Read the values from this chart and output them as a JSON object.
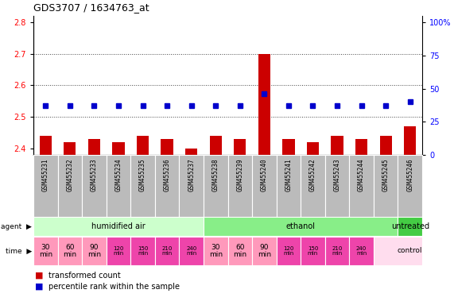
{
  "title": "GDS3707 / 1634763_at",
  "samples": [
    "GSM455231",
    "GSM455232",
    "GSM455233",
    "GSM455234",
    "GSM455235",
    "GSM455236",
    "GSM455237",
    "GSM455238",
    "GSM455239",
    "GSM455240",
    "GSM455241",
    "GSM455242",
    "GSM455243",
    "GSM455244",
    "GSM455245",
    "GSM455246"
  ],
  "transformed_count": [
    2.44,
    2.42,
    2.43,
    2.42,
    2.44,
    2.43,
    2.4,
    2.44,
    2.43,
    2.7,
    2.43,
    2.42,
    2.44,
    2.43,
    2.44,
    2.47
  ],
  "percentile_rank": [
    37,
    37,
    37,
    37,
    37,
    37,
    37,
    37,
    37,
    46,
    37,
    37,
    37,
    37,
    37,
    40
  ],
  "ylim_left": [
    2.38,
    2.82
  ],
  "ylim_right": [
    0,
    105
  ],
  "yticks_left": [
    2.4,
    2.5,
    2.6,
    2.7,
    2.8
  ],
  "yticks_right": [
    0,
    25,
    50,
    75,
    100
  ],
  "ytick_labels_right": [
    "0",
    "25",
    "50",
    "75",
    "100%"
  ],
  "bar_color": "#cc0000",
  "dot_color": "#0000cc",
  "bar_bottom": 2.38,
  "agent_groups": [
    {
      "label": "humidified air",
      "start": 0,
      "end": 7,
      "color": "#ccffcc"
    },
    {
      "label": "ethanol",
      "start": 7,
      "end": 15,
      "color": "#88ee88"
    },
    {
      "label": "untreated",
      "start": 15,
      "end": 16,
      "color": "#44cc44"
    }
  ],
  "time_labels_normal": [
    "30\nmin",
    "60\nmin",
    "90\nmin"
  ],
  "time_labels_small": [
    "120\nmin",
    "150\nmin",
    "210\nmin",
    "240\nmin"
  ],
  "time_color_normal": "#ff99bb",
  "time_color_small": "#ee44aa",
  "time_control": "control",
  "time_control_color": "#ffddee",
  "sample_bg_color": "#bbbbbb",
  "legend_bar_label": "transformed count",
  "legend_dot_label": "percentile rank within the sample",
  "n_samples": 16,
  "fig_width": 5.71,
  "fig_height": 3.84,
  "dpi": 100
}
